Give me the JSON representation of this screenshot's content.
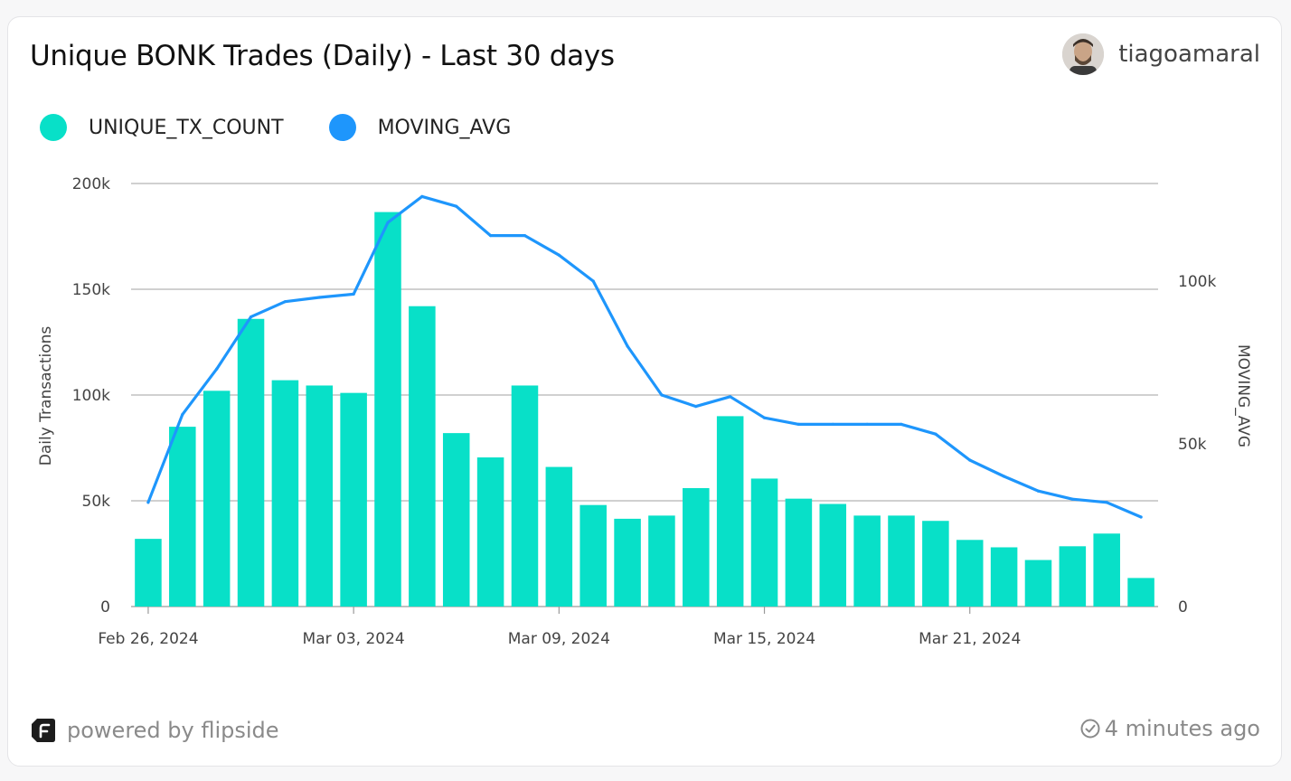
{
  "header": {
    "title": "Unique BONK Trades (Daily) - Last 30 days",
    "author": "tiagoamaral"
  },
  "legend": [
    {
      "label": "UNIQUE_TX_COUNT",
      "color": "#08e0c8"
    },
    {
      "label": "MOVING_AVG",
      "color": "#1e96fc"
    }
  ],
  "footer": {
    "powered_by": "powered by flipside",
    "updated": "4 minutes ago"
  },
  "chart_data": {
    "type": "bar",
    "categories": [
      "2024-02-26",
      "2024-02-27",
      "2024-02-28",
      "2024-02-29",
      "2024-03-01",
      "2024-03-02",
      "2024-03-03",
      "2024-03-04",
      "2024-03-05",
      "2024-03-06",
      "2024-03-07",
      "2024-03-08",
      "2024-03-09",
      "2024-03-10",
      "2024-03-11",
      "2024-03-12",
      "2024-03-13",
      "2024-03-14",
      "2024-03-15",
      "2024-03-16",
      "2024-03-17",
      "2024-03-18",
      "2024-03-19",
      "2024-03-20",
      "2024-03-21",
      "2024-03-22",
      "2024-03-23",
      "2024-03-24",
      "2024-03-25",
      "2024-03-26"
    ],
    "series": [
      {
        "name": "UNIQUE_TX_COUNT",
        "type": "bar",
        "axis": "left",
        "color": "#08e0c8",
        "values": [
          32000,
          85000,
          102000,
          136000,
          107000,
          104500,
          101000,
          186500,
          142000,
          82000,
          70500,
          104500,
          66000,
          48000,
          41500,
          43000,
          56000,
          90000,
          60500,
          51000,
          48500,
          43000,
          43000,
          40500,
          31500,
          28000,
          22000,
          28500,
          34500,
          13500
        ]
      },
      {
        "name": "MOVING_AVG",
        "type": "line",
        "axis": "right",
        "color": "#1e96fc",
        "values": [
          32000,
          59000,
          73000,
          89000,
          93700,
          95000,
          96000,
          118000,
          126000,
          123000,
          114000,
          114000,
          108000,
          100000,
          80000,
          65000,
          61500,
          64500,
          58000,
          56000,
          56000,
          56000,
          56000,
          53000,
          45000,
          40000,
          35500,
          33000,
          32000,
          27500
        ]
      }
    ],
    "x_ticks": [
      "Feb 26, 2024",
      "Mar 03, 2024",
      "Mar 09, 2024",
      "Mar 15, 2024",
      "Mar 21, 2024"
    ],
    "ylabel": "Daily Transactions",
    "y2label": "MOVING_AVG",
    "ylim": [
      0,
      200000
    ],
    "y_ticks": [
      "0",
      "50k",
      "100k",
      "150k",
      "200k"
    ],
    "y2lim": [
      0,
      130000
    ],
    "y2_ticks": [
      "0",
      "50k",
      "100k"
    ],
    "grid": true,
    "legend_position": "top-left"
  }
}
